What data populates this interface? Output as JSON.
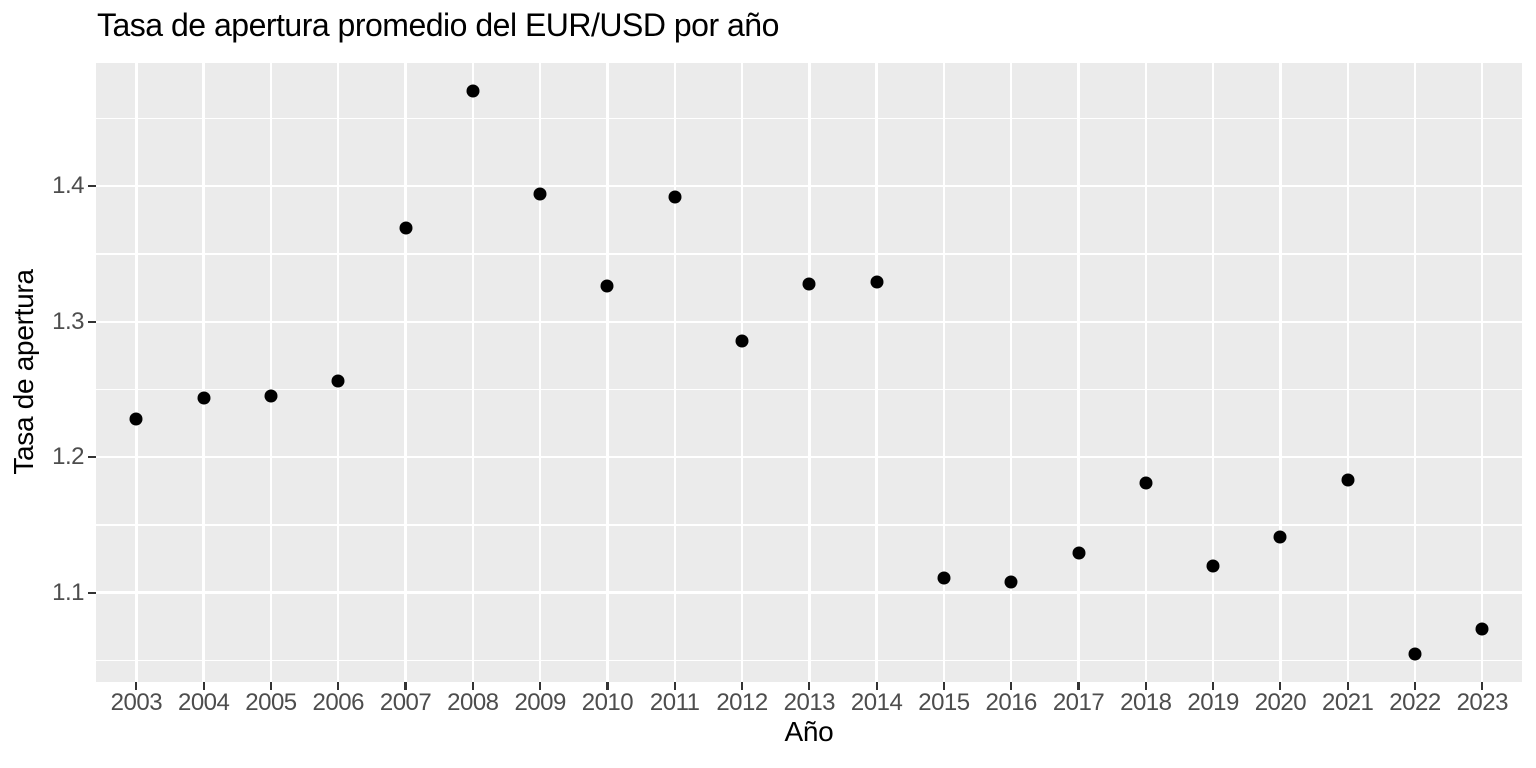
{
  "title": "Tasa de apertura promedio del EUR/USD por año",
  "chart_data": {
    "type": "scatter",
    "title": "Tasa de apertura promedio del EUR/USD por año",
    "xlabel": "Año",
    "ylabel": "Tasa de apertura",
    "x": [
      2003,
      2004,
      2005,
      2006,
      2007,
      2008,
      2009,
      2010,
      2011,
      2012,
      2013,
      2014,
      2015,
      2016,
      2017,
      2018,
      2019,
      2020,
      2021,
      2022,
      2023
    ],
    "y": [
      1.228,
      1.244,
      1.245,
      1.256,
      1.369,
      1.47,
      1.394,
      1.326,
      1.392,
      1.286,
      1.328,
      1.329,
      1.111,
      1.108,
      1.129,
      1.181,
      1.12,
      1.141,
      1.183,
      1.055,
      1.073
    ],
    "x_ticks": [
      2003,
      2004,
      2005,
      2006,
      2007,
      2008,
      2009,
      2010,
      2011,
      2012,
      2013,
      2014,
      2015,
      2016,
      2017,
      2018,
      2019,
      2020,
      2021,
      2022,
      2023
    ],
    "y_ticks": [
      1.1,
      1.2,
      1.3,
      1.4
    ],
    "y_tick_labels": [
      "1.1",
      "1.2",
      "1.3",
      "1.4"
    ],
    "y_minor_ticks": [
      1.05,
      1.15,
      1.25,
      1.35,
      1.45
    ],
    "xlim": [
      2002.4,
      2023.59
    ],
    "ylim": [
      1.034,
      1.491
    ],
    "grid": true,
    "legend": false,
    "colors": {
      "panel_background": "#EBEBEB",
      "gridline": "#FFFFFF",
      "point": "#000000",
      "tick_label": "#4D4D4D",
      "tick_mark": "#333333",
      "title_text": "#000000"
    }
  }
}
